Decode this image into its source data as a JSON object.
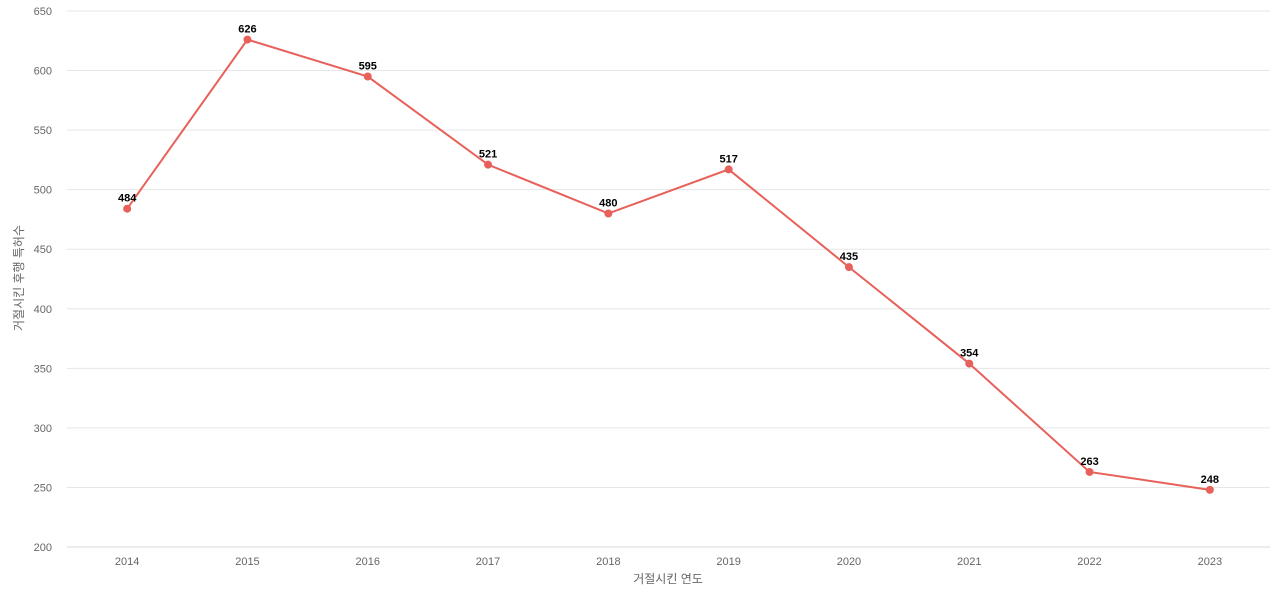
{
  "chart_data": {
    "type": "line",
    "title": "",
    "xlabel": "거절시킨 연도",
    "ylabel": "거절시킨 후행 특허수",
    "categories": [
      "2014",
      "2015",
      "2016",
      "2017",
      "2018",
      "2019",
      "2020",
      "2021",
      "2022",
      "2023"
    ],
    "series": [
      {
        "values": [
          484,
          626,
          595,
          521,
          480,
          517,
          435,
          354,
          263,
          248
        ],
        "color": "#e8605a"
      }
    ],
    "ylim": [
      200,
      650
    ],
    "yticks": [
      200,
      250,
      300,
      350,
      400,
      450,
      500,
      550,
      600,
      650
    ],
    "grid": true,
    "legend": "none",
    "data_labels": true
  }
}
